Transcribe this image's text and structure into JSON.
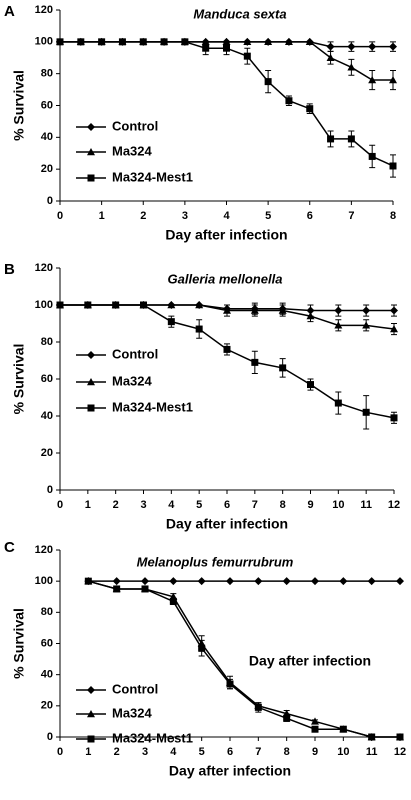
{
  "chart_data": [
    {
      "type": "line",
      "panel_label": "A",
      "title": "Manduca sexta",
      "x_label": "Day after infection",
      "y_label": "% Survival",
      "x": [
        0,
        0.5,
        1,
        1.5,
        2,
        2.5,
        3,
        3.5,
        4,
        4.5,
        5,
        5.5,
        6,
        6.5,
        7,
        7.5,
        8
      ],
      "series": [
        {
          "name": "Control",
          "color": "#000000",
          "marker": "diamond",
          "values": [
            100,
            100,
            100,
            100,
            100,
            100,
            100,
            100,
            100,
            100,
            100,
            100,
            100,
            97,
            97,
            97,
            97
          ],
          "errors": [
            0,
            0,
            0,
            0,
            0,
            0,
            0,
            0,
            0,
            0,
            0,
            0,
            0,
            3,
            3,
            3,
            3
          ]
        },
        {
          "name": "Ma324",
          "color": "#000000",
          "marker": "triangle",
          "values": [
            100,
            100,
            100,
            100,
            100,
            100,
            100,
            100,
            100,
            100,
            100,
            100,
            100,
            90,
            84,
            76,
            76
          ],
          "errors": [
            0,
            0,
            0,
            0,
            0,
            0,
            0,
            0,
            0,
            0,
            0,
            0,
            0,
            4,
            5,
            6,
            6
          ]
        },
        {
          "name": "Ma324-Mest1",
          "color": "#000000",
          "marker": "square",
          "values": [
            100,
            100,
            100,
            100,
            100,
            100,
            100,
            96,
            96,
            91,
            75,
            63,
            58,
            39,
            39,
            28,
            22
          ],
          "errors": [
            0,
            0,
            0,
            0,
            0,
            0,
            0,
            4,
            4,
            5,
            7,
            3,
            3,
            5,
            5,
            7,
            7
          ]
        }
      ],
      "xlim": [
        0,
        8
      ],
      "xticks": [
        0,
        1,
        2,
        3,
        4,
        5,
        6,
        7,
        8
      ],
      "ylim": [
        0,
        120
      ],
      "yticks": [
        0,
        20,
        40,
        60,
        80,
        100,
        120
      ]
    },
    {
      "type": "line",
      "panel_label": "B",
      "title": "Galleria mellonella",
      "x_label": "Day after infection",
      "y_label": "% Survival",
      "x": [
        0,
        1,
        2,
        3,
        4,
        5,
        6,
        7,
        8,
        9,
        10,
        11,
        12
      ],
      "series": [
        {
          "name": "Control",
          "color": "#000000",
          "marker": "diamond",
          "values": [
            100,
            100,
            100,
            100,
            100,
            100,
            98,
            98,
            98,
            97,
            97,
            97,
            97
          ],
          "errors": [
            0,
            0,
            0,
            0,
            0,
            0,
            2,
            3,
            3,
            3,
            3,
            3,
            3
          ]
        },
        {
          "name": "Ma324",
          "color": "#000000",
          "marker": "triangle",
          "values": [
            100,
            100,
            100,
            100,
            100,
            100,
            97,
            97,
            97,
            94,
            89,
            89,
            87
          ],
          "errors": [
            0,
            0,
            0,
            0,
            0,
            0,
            3,
            3,
            3,
            3,
            3,
            3,
            3
          ]
        },
        {
          "name": "Ma324-Mest1",
          "color": "#000000",
          "marker": "square",
          "values": [
            100,
            100,
            100,
            100,
            91,
            87,
            76,
            69,
            66,
            57,
            47,
            42,
            39
          ],
          "errors": [
            0,
            0,
            0,
            0,
            3,
            5,
            3,
            6,
            5,
            3,
            6,
            9,
            3
          ]
        }
      ],
      "xlim": [
        0,
        12
      ],
      "xticks": [
        0,
        1,
        2,
        3,
        4,
        5,
        6,
        7,
        8,
        9,
        10,
        11,
        12
      ],
      "ylim": [
        0,
        120
      ],
      "yticks": [
        0,
        20,
        40,
        60,
        80,
        100,
        120
      ]
    },
    {
      "type": "line",
      "panel_label": "C",
      "title": "Melanoplus femurrubrum",
      "x_label": "Day after infection",
      "y_label": "% Survival",
      "annotation": "Day after infection",
      "x": [
        1,
        2,
        3,
        4,
        5,
        6,
        7,
        8,
        9,
        10,
        11,
        12
      ],
      "series": [
        {
          "name": "Control",
          "color": "#000000",
          "marker": "diamond",
          "values": [
            100,
            100,
            100,
            100,
            100,
            100,
            100,
            100,
            100,
            100,
            100,
            100
          ],
          "errors": [
            0,
            0,
            0,
            0,
            0,
            0,
            0,
            0,
            0,
            0,
            0,
            0
          ]
        },
        {
          "name": "Ma324",
          "color": "#000000",
          "marker": "triangle",
          "values": [
            100,
            95,
            95,
            90,
            60,
            35,
            20,
            15,
            10,
            5,
            0,
            0
          ],
          "errors": [
            0,
            0,
            0,
            2,
            5,
            4,
            2,
            2,
            1,
            1,
            0,
            0
          ]
        },
        {
          "name": "Ma324-Mest1",
          "color": "#000000",
          "marker": "square",
          "values": [
            100,
            95,
            95,
            87,
            57,
            34,
            19,
            12,
            5,
            5,
            0,
            0
          ],
          "errors": [
            0,
            0,
            0,
            2,
            5,
            3,
            3,
            2,
            0,
            0,
            0,
            0
          ]
        }
      ],
      "xlim": [
        0,
        12
      ],
      "xticks": [
        0,
        1,
        2,
        3,
        4,
        5,
        6,
        7,
        8,
        9,
        10,
        11,
        12
      ],
      "ylim": [
        0,
        120
      ],
      "yticks": [
        0,
        20,
        40,
        60,
        80,
        100,
        120
      ]
    }
  ]
}
